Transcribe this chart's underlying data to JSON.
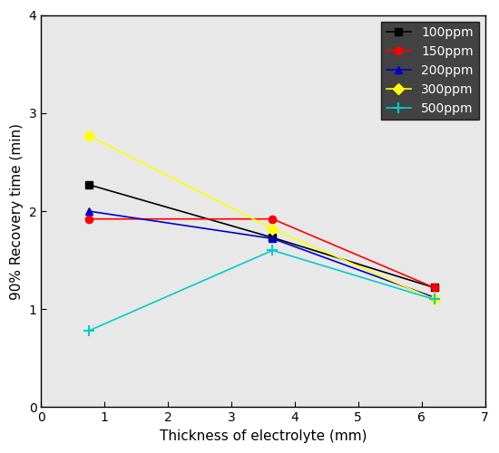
{
  "series": [
    {
      "label": "100ppm",
      "color": "#000000",
      "marker": "s",
      "x": [
        0.75,
        3.65,
        6.2
      ],
      "y": [
        2.27,
        1.73,
        1.22
      ]
    },
    {
      "label": "150ppm",
      "color": "#ff0000",
      "marker": "o",
      "x": [
        0.75,
        3.65,
        6.2
      ],
      "y": [
        1.92,
        1.92,
        1.22
      ]
    },
    {
      "label": "200ppm",
      "color": "#0000cc",
      "marker": "^",
      "x": [
        0.75,
        3.65,
        6.2
      ],
      "y": [
        2.0,
        1.72,
        1.12
      ]
    },
    {
      "label": "300ppm",
      "color": "#ffff00",
      "marker": "D",
      "x": [
        0.75,
        3.65,
        6.2
      ],
      "y": [
        2.77,
        1.82,
        1.1
      ]
    },
    {
      "label": "500ppm",
      "color": "#00cccc",
      "marker": "+",
      "x": [
        0.75,
        3.65,
        6.2
      ],
      "y": [
        0.78,
        1.6,
        1.1
      ]
    }
  ],
  "xlabel": "Thickness of electrolyte (mm)",
  "ylabel": "90% Recovery time (min)",
  "xlim": [
    0,
    7
  ],
  "ylim": [
    0,
    4
  ],
  "xticks": [
    0,
    1,
    2,
    3,
    4,
    5,
    6,
    7
  ],
  "yticks": [
    0,
    1,
    2,
    3,
    4
  ],
  "legend_loc": "upper right",
  "plot_bg_color": "#e8e8e8",
  "background_color": "#ffffff",
  "legend_bg_color": "#1a1a1a",
  "legend_text_color": "#ffffff",
  "linewidth": 1.2,
  "markersize": 6
}
